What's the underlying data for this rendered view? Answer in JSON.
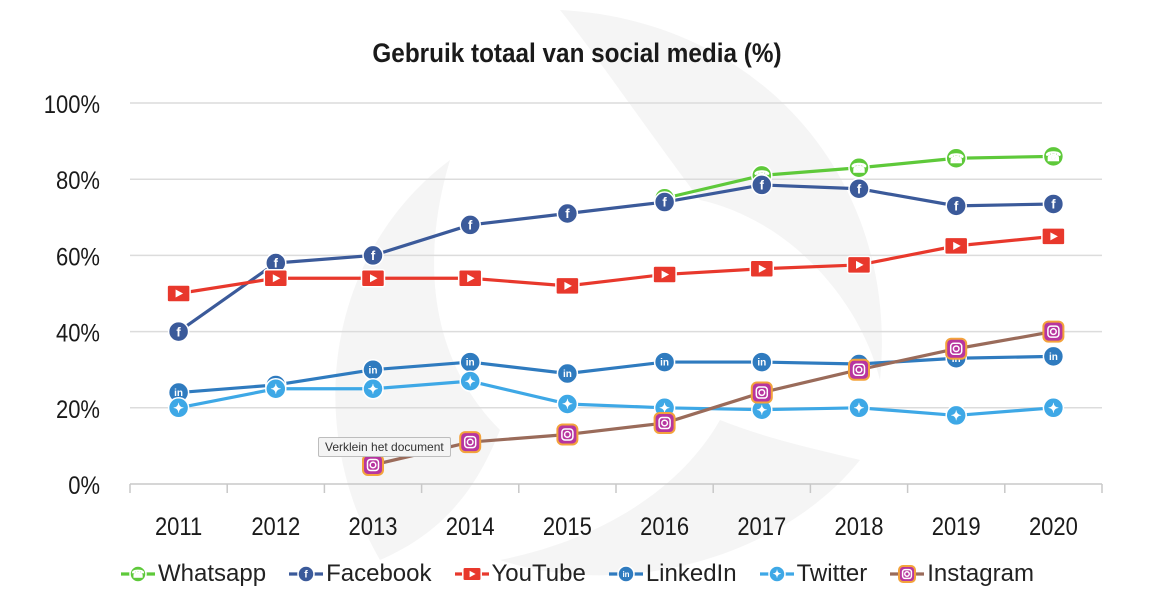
{
  "chart_data": {
    "type": "line",
    "title": "Gebruik totaal van social media (%)",
    "xlabel": "",
    "ylabel": "",
    "categories": [
      "2011",
      "2012",
      "2013",
      "2014",
      "2015",
      "2016",
      "2017",
      "2018",
      "2019",
      "2020"
    ],
    "yticks": [
      "0%",
      "20%",
      "40%",
      "60%",
      "80%",
      "100%"
    ],
    "ylim": [
      0,
      100
    ],
    "grid": true,
    "legend_position": "bottom",
    "series": [
      {
        "name": "Whatsapp",
        "color": "#5ec93a",
        "icon": "whatsapp-icon",
        "values": [
          null,
          null,
          null,
          null,
          null,
          75,
          81,
          83,
          85.5,
          86
        ]
      },
      {
        "name": "Facebook",
        "color": "#3b5a9a",
        "icon": "facebook-icon",
        "values": [
          40,
          58,
          60,
          68,
          71,
          74,
          78.5,
          77.5,
          73,
          73.5
        ]
      },
      {
        "name": "YouTube",
        "color": "#e8382c",
        "icon": "youtube-icon",
        "values": [
          50,
          54,
          54,
          54,
          52,
          55,
          56.5,
          57.5,
          62.5,
          65
        ]
      },
      {
        "name": "LinkedIn",
        "color": "#2f7bbf",
        "icon": "linkedin-icon",
        "values": [
          24,
          26,
          30,
          32,
          29,
          32,
          32,
          31.5,
          33,
          33.5
        ]
      },
      {
        "name": "Twitter",
        "color": "#3ea8e6",
        "icon": "twitter-icon",
        "values": [
          20,
          25,
          25,
          27,
          21,
          20,
          19.5,
          20,
          18,
          20
        ]
      },
      {
        "name": "Instagram",
        "color": "#9a6b5a",
        "icon": "instagram-icon",
        "values": [
          null,
          null,
          5,
          11,
          13,
          16,
          24,
          30,
          35.5,
          40
        ]
      }
    ]
  },
  "tooltip": {
    "text": "Verklein het document"
  }
}
